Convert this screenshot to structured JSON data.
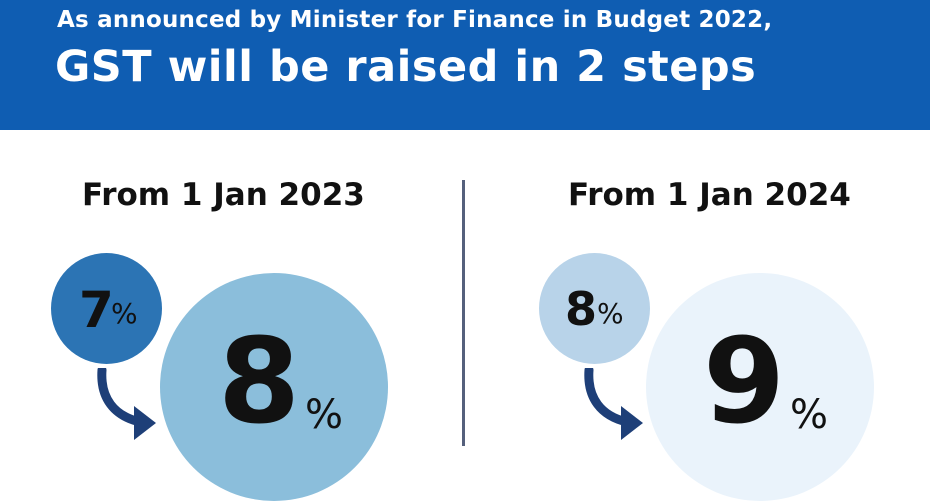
{
  "header": {
    "line1": "As announced by Minister for Finance in Budget 2022,",
    "line2": "GST will be raised in 2 steps"
  },
  "steps": [
    {
      "title": "From 1 Jan 2023",
      "from_value": "7",
      "to_value": "8",
      "percent_sign": "%",
      "from_circle_color": "#2c74b4",
      "to_circle_color": "#8bbedb"
    },
    {
      "title": "From 1 Jan 2024",
      "from_value": "8",
      "to_value": "9",
      "percent_sign": "%",
      "from_circle_color": "#b8d3e9",
      "to_circle_color": "#eaf3fb"
    }
  ],
  "colors": {
    "banner": "#0f5db2",
    "divider": "#55607c",
    "arrow": "#1e3f78"
  },
  "icons": {
    "step_arrow": "curved-arrow-right-icon"
  }
}
